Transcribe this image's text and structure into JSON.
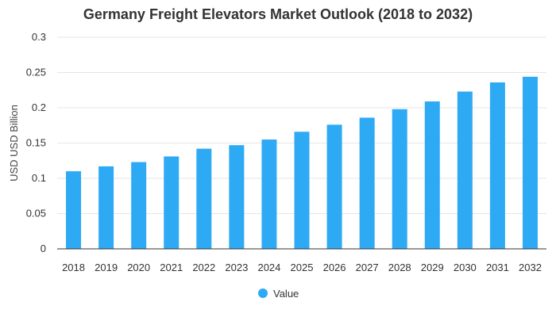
{
  "colors": {
    "bar": "#2eaaf5",
    "grid": "#e6e6e6",
    "axis": "#333333"
  },
  "chart_data": {
    "type": "bar",
    "title": "Germany Freight Elevators Market Outlook (2018 to 2032)",
    "xlabel": "",
    "ylabel": "USD USD Billion",
    "ylim": [
      0,
      0.3
    ],
    "yticks": [
      0,
      0.05,
      0.1,
      0.15,
      0.2,
      0.25,
      0.3
    ],
    "ytick_labels": [
      "0",
      "0.05",
      "0.1",
      "0.15",
      "0.2",
      "0.25",
      "0.3"
    ],
    "grid": true,
    "legend_position": "bottom-center",
    "categories": [
      "2018",
      "2019",
      "2020",
      "2021",
      "2022",
      "2023",
      "2024",
      "2025",
      "2026",
      "2027",
      "2028",
      "2029",
      "2030",
      "2031",
      "2032"
    ],
    "series": [
      {
        "name": "Value",
        "values": [
          0.11,
          0.117,
          0.123,
          0.131,
          0.142,
          0.147,
          0.155,
          0.166,
          0.176,
          0.186,
          0.198,
          0.209,
          0.223,
          0.236,
          0.244
        ]
      }
    ]
  }
}
